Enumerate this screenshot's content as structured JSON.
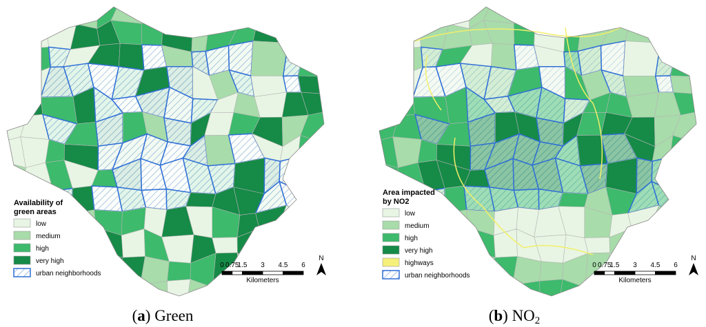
{
  "panels": [
    {
      "legend": {
        "title_lines": [
          "Availability of",
          "green areas"
        ],
        "items": [
          "low",
          "medium",
          "high",
          "very high",
          "urban neighborhoods"
        ]
      },
      "scale": {
        "ticks": [
          0,
          0.75,
          1.5,
          3,
          4.5,
          6
        ],
        "unit": "Kilometers"
      },
      "north": "N",
      "caption": {
        "prefix": "(",
        "label": "a",
        "text": ") Green"
      }
    },
    {
      "legend": {
        "title_lines": [
          "Area impacted",
          "by NO2"
        ],
        "items": [
          "low",
          "medium",
          "high",
          "very high",
          "highways",
          "urban neighborhoods"
        ]
      },
      "scale": {
        "ticks": [
          0,
          0.75,
          1.5,
          3,
          4.5,
          6
        ],
        "unit": "Kilometers"
      },
      "north": "N",
      "caption": {
        "prefix": "(",
        "label": "b",
        "text": ") NO",
        "sub": "2"
      }
    }
  ]
}
